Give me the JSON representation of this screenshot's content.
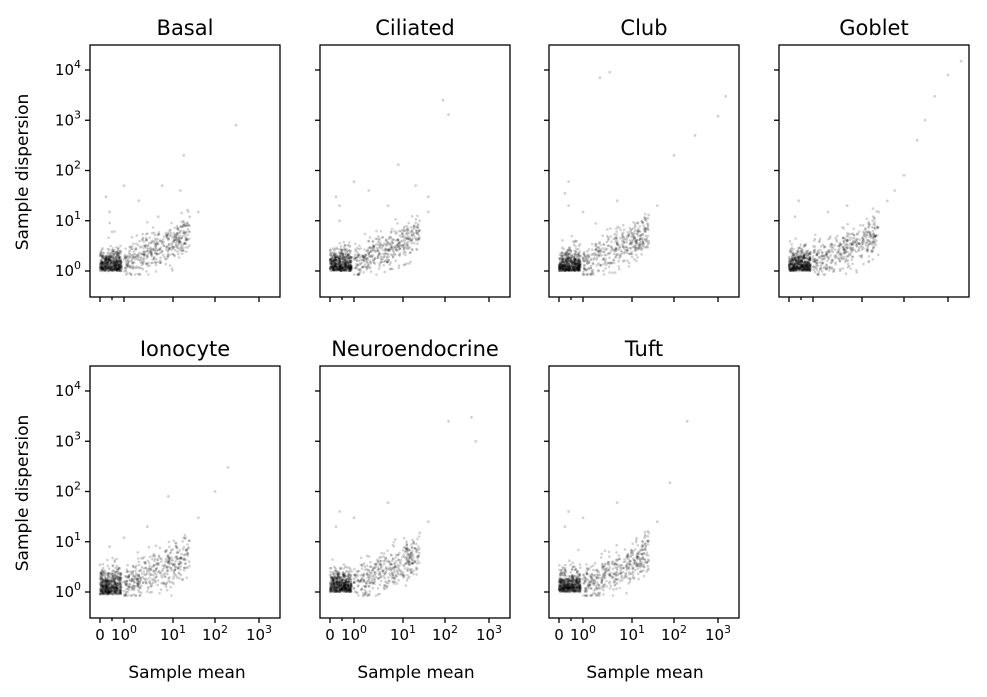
{
  "figure": {
    "ylabel": "Sample dispersion",
    "xlabel": "Sample mean",
    "x_tick_labels": [
      "0",
      "10",
      "10",
      "10",
      "10"
    ],
    "x_tick_sups": [
      "",
      "0",
      "1",
      "2",
      "3"
    ],
    "y_tick_labels": [
      "10",
      "10",
      "10",
      "10",
      "10"
    ],
    "y_tick_sups": [
      "0",
      "1",
      "2",
      "3",
      "4"
    ]
  },
  "chart_data": [
    {
      "type": "scatter",
      "title": "Basal",
      "xscale": "symlog",
      "yscale": "log",
      "xlim": [
        -0.3,
        3000
      ],
      "ylim": [
        0.5,
        30000
      ],
      "marker_color": "#000000",
      "grid": false,
      "ylabel": "Sample dispersion",
      "xlabel": "",
      "x": [
        0.4,
        0.6,
        1,
        1.5,
        2,
        2.5,
        3.4,
        5,
        8,
        12,
        18,
        25,
        40,
        300,
        18,
        6,
        2,
        1,
        0.4,
        0.4,
        0.25,
        0.5,
        5,
        15
      ],
      "y": [
        1.2,
        1.5,
        1.7,
        2.0,
        2.1,
        2.4,
        2.8,
        3.5,
        4.2,
        5.3,
        8.0,
        12,
        15,
        800,
        200,
        50,
        25,
        50,
        15,
        9,
        30,
        6,
        12,
        40
      ]
    },
    {
      "type": "scatter",
      "title": "Ciliated",
      "xscale": "symlog",
      "yscale": "log",
      "xlim": [
        -0.3,
        3000
      ],
      "ylim": [
        0.5,
        30000
      ],
      "marker_color": "#000000",
      "grid": false,
      "ylabel": "",
      "xlabel": "",
      "x": [
        0.4,
        0.6,
        1,
        1.5,
        2,
        2.5,
        3.4,
        5,
        8,
        12,
        18,
        25,
        40,
        90,
        120,
        8,
        2,
        0.4,
        0.4,
        0.25,
        1,
        5,
        20,
        40
      ],
      "y": [
        1.2,
        1.5,
        1.7,
        2.0,
        2.3,
        2.6,
        2.9,
        3.5,
        4.2,
        5.5,
        7.0,
        10,
        15,
        2500,
        1300,
        130,
        40,
        20,
        10,
        30,
        60,
        20,
        50,
        30
      ]
    },
    {
      "type": "scatter",
      "title": "Club",
      "xscale": "symlog",
      "yscale": "log",
      "xlim": [
        -0.3,
        3000
      ],
      "ylim": [
        0.5,
        30000
      ],
      "marker_color": "#000000",
      "grid": false,
      "ylabel": "",
      "xlabel": "",
      "x": [
        0.4,
        0.6,
        1,
        1.5,
        2,
        2.5,
        3.4,
        5,
        8,
        12,
        18,
        25,
        40,
        1500,
        1000,
        300,
        2.2,
        3.5,
        0.4,
        0.4,
        0.25,
        1,
        5,
        100
      ],
      "y": [
        1.3,
        1.6,
        1.8,
        2.1,
        2.4,
        2.8,
        3.2,
        4.0,
        5.0,
        6.5,
        9,
        13,
        20,
        3000,
        1200,
        500,
        7000,
        9000,
        20,
        60,
        35,
        15,
        25,
        200
      ]
    },
    {
      "type": "scatter",
      "title": "Goblet",
      "xscale": "symlog",
      "yscale": "log",
      "xlim": [
        -0.3,
        3000
      ],
      "ylim": [
        0.5,
        30000
      ],
      "marker_color": "#000000",
      "grid": false,
      "ylabel": "",
      "xlabel": "",
      "x": [
        0.4,
        0.6,
        1,
        1.5,
        2,
        2.5,
        3.4,
        5,
        8,
        12,
        18,
        25,
        40,
        60,
        100,
        200,
        300,
        500,
        1000,
        2000,
        0.4,
        0.25,
        2,
        5
      ],
      "y": [
        1.0,
        1.3,
        1.6,
        2.0,
        2.4,
        2.8,
        3.2,
        4.0,
        5.5,
        7.0,
        10,
        15,
        25,
        40,
        80,
        400,
        1000,
        3000,
        8000,
        15000,
        25,
        12,
        15,
        20
      ]
    },
    {
      "type": "scatter",
      "title": "Ionocyte",
      "xscale": "symlog",
      "yscale": "log",
      "xlim": [
        -0.3,
        3000
      ],
      "ylim": [
        0.5,
        30000
      ],
      "marker_color": "#000000",
      "grid": false,
      "ylabel": "Sample dispersion",
      "xlabel": "Sample mean",
      "x": [
        0,
        0,
        0,
        0.3,
        0.6,
        1,
        1.5,
        2,
        3,
        5,
        8,
        12,
        20,
        40,
        100,
        200,
        0.4,
        1,
        3,
        8
      ],
      "y": [
        0.9,
        1.5,
        3.5,
        1.0,
        1.5,
        1.6,
        1.8,
        2.2,
        2.8,
        3.5,
        5.0,
        8.0,
        12,
        30,
        100,
        300,
        8,
        12,
        20,
        80
      ]
    },
    {
      "type": "scatter",
      "title": "Neuroendocrine",
      "xscale": "symlog",
      "yscale": "log",
      "xlim": [
        -0.3,
        3000
      ],
      "ylim": [
        0.5,
        30000
      ],
      "marker_color": "#000000",
      "grid": false,
      "ylabel": "",
      "xlabel": "Sample mean",
      "x": [
        0.4,
        0.6,
        1,
        1.5,
        2,
        2.5,
        3.4,
        5,
        8,
        12,
        18,
        25,
        40,
        120,
        400,
        500,
        0.4,
        0.25,
        1,
        5
      ],
      "y": [
        1.2,
        1.5,
        1.8,
        2.2,
        2.6,
        3.0,
        3.5,
        4.2,
        5.5,
        7.0,
        10,
        15,
        25,
        2500,
        3000,
        1000,
        40,
        20,
        30,
        60
      ]
    },
    {
      "type": "scatter",
      "title": "Tuft",
      "xscale": "symlog",
      "yscale": "log",
      "xlim": [
        -0.3,
        3000
      ],
      "ylim": [
        0.5,
        30000
      ],
      "marker_color": "#000000",
      "grid": false,
      "ylabel": "",
      "xlabel": "Sample mean",
      "x": [
        0.4,
        0.6,
        1,
        1.5,
        2,
        2.5,
        3.4,
        5,
        8,
        12,
        18,
        25,
        40,
        80,
        200,
        0.4,
        0.25,
        1,
        5
      ],
      "y": [
        1.2,
        1.5,
        1.8,
        2.2,
        2.6,
        3.0,
        3.5,
        4.2,
        5.5,
        7.0,
        10,
        15,
        25,
        150,
        2500,
        40,
        20,
        30,
        60
      ]
    }
  ]
}
